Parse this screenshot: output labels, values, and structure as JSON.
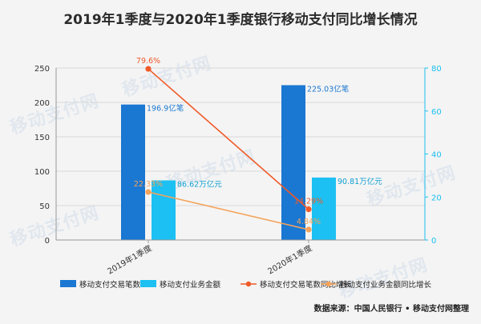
{
  "chart_data": {
    "type": "bar",
    "title": "2019年1季度与2020年1季度银行移动支付同比增长情况",
    "categories": [
      "2019年1季度",
      "2020年1季度"
    ],
    "left_axis": {
      "min": 0,
      "max": 250,
      "ticks": [
        0,
        50,
        100,
        150,
        200,
        250
      ]
    },
    "right_axis": {
      "min": 0,
      "max": 80,
      "ticks": [
        0,
        20,
        40,
        60,
        80
      ]
    },
    "grid": true,
    "legend_position": "bottom",
    "series": [
      {
        "name": "移动支付交易笔数",
        "kind": "bar",
        "axis": "left",
        "color": "#1a77d2",
        "values": [
          196.9,
          225.03
        ],
        "labels": [
          "196.9亿笔",
          "225.03亿笔"
        ]
      },
      {
        "name": "移动支付业务金额",
        "kind": "bar",
        "axis": "left",
        "color": "#1cc0f2",
        "values": [
          86.62,
          90.81
        ],
        "labels": [
          "86.62万亿元",
          "90.81万亿元"
        ]
      },
      {
        "name": "移动支付交易笔数同比增长",
        "kind": "line",
        "axis": "right",
        "color": "#f05a28",
        "values": [
          79.6,
          14.29
        ],
        "labels": [
          "79.6%",
          "14.29%"
        ]
      },
      {
        "name": "移动支付业务金额同比增长",
        "kind": "line",
        "axis": "right",
        "color": "#f5a35a",
        "values": [
          22.33,
          4.84
        ],
        "labels": [
          "22.33%",
          "4.84%"
        ]
      }
    ],
    "source_note": "数据来源：中国人民银行 • 移动支付网整理"
  },
  "watermark": "移动支付网"
}
